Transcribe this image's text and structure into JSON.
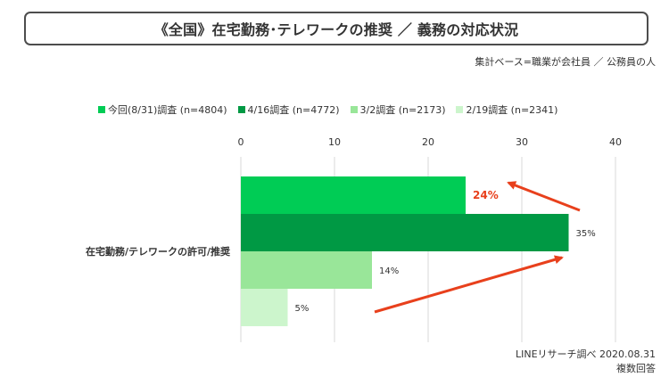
{
  "title": "《全国》在宅勤務･テレワークの推奨 ／ 義務の対応状況",
  "subtitle": "集計ベース=職業が会社員 ／ 公務員の人",
  "footer": {
    "source": "LINEリサーチ調べ 2020.08.31",
    "note": "複数回答"
  },
  "chart_data": {
    "type": "bar",
    "orientation": "horizontal",
    "categories": [
      "在宅勤務/テレワークの許可/推奨"
    ],
    "series": [
      {
        "name": "今回(8/31)調査 (n=4804)",
        "values": [
          24
        ],
        "label": "24%",
        "color": "#00cc55",
        "label_color": "#e8401c"
      },
      {
        "name": "4/16調査 (n=4772)",
        "values": [
          35
        ],
        "label": "35%",
        "color": "#009944",
        "label_color": "#333333"
      },
      {
        "name": "3/2調査 (n=2173)",
        "values": [
          14
        ],
        "label": "14%",
        "color": "#99e699",
        "label_color": "#333333"
      },
      {
        "name": "2/19調査 (n=2341)",
        "values": [
          5
        ],
        "label": "5%",
        "color": "#ccf5cc",
        "label_color": "#333333"
      }
    ],
    "xlim": [
      0,
      40
    ],
    "xticks": [
      0,
      10,
      20,
      30,
      40
    ],
    "grid": true,
    "legend_position": "top",
    "arrow_color": "#e8401c"
  }
}
